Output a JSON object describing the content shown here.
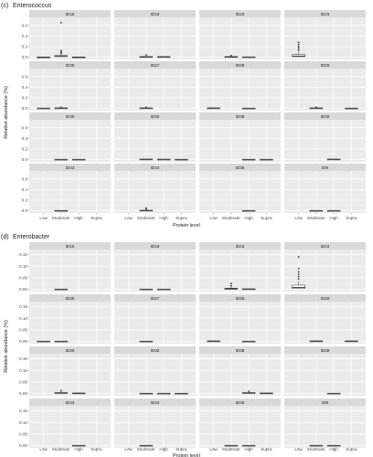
{
  "chart_data": [
    {
      "type": "box",
      "label": "(c)",
      "title": "Enterococcus",
      "xlabel": "Protein level",
      "ylabel": "Relative abundance (%)",
      "categories": [
        "Low",
        "Moderate",
        "High",
        "Supra"
      ],
      "ylim": [
        0,
        0.7
      ],
      "yticks": [
        0.0,
        0.2,
        0.4,
        0.6
      ],
      "ytick_labels": [
        "0.0",
        "0.2",
        "0.4",
        "0.6"
      ],
      "panels": [
        {
          "id": "ID18",
          "boxes": {
            "Low": [
              0,
              0,
              0,
              0,
              0
            ],
            "Moderate": [
              0,
              0.01,
              0.015,
              0.03,
              0.05
            ],
            "High": [
              0,
              0,
              0,
              0,
              0
            ]
          },
          "outliers": {
            "Moderate": [
              0.07,
              0.09,
              0.12,
              0.65
            ]
          }
        },
        {
          "id": "ID19",
          "boxes": {
            "Moderate": [
              0,
              0,
              0.005,
              0.01,
              0.02
            ],
            "High": [
              0,
              0,
              0.005,
              0.01,
              0.015
            ]
          },
          "outliers": {
            "Moderate": [
              0.04
            ]
          }
        },
        {
          "id": "ID23",
          "boxes": {
            "Moderate": [
              0,
              0,
              0.005,
              0.01,
              0.02
            ],
            "High": [
              0,
              0,
              0.002,
              0.005,
              0.01
            ]
          },
          "outliers": {
            "Moderate": [
              0.03
            ]
          }
        },
        {
          "id": "ID24",
          "boxes": {
            "Low": [
              0,
              0.01,
              0.02,
              0.05,
              0.1
            ]
          },
          "outliers": {
            "Low": [
              0.13,
              0.17,
              0.2,
              0.24,
              0.28
            ]
          }
        },
        {
          "id": "ID25",
          "boxes": {
            "Low": [
              0,
              0,
              0.002,
              0.005,
              0.01
            ],
            "Moderate": [
              0,
              0,
              0.004,
              0.008,
              0.015
            ]
          },
          "outliers": {
            "Moderate": [
              0.02
            ]
          }
        },
        {
          "id": "ID27",
          "boxes": {
            "Moderate": [
              0,
              0,
              0.004,
              0.008,
              0.015
            ]
          },
          "outliers": {
            "Moderate": [
              0.02
            ]
          }
        },
        {
          "id": "ID28",
          "boxes": {
            "Low": [
              0,
              0,
              0.004,
              0.008,
              0.015
            ],
            "High": [
              0,
              0,
              0.002,
              0.004,
              0.008
            ]
          },
          "outliers": {}
        },
        {
          "id": "ID29",
          "boxes": {
            "Moderate": [
              0,
              0,
              0.004,
              0.008,
              0.015
            ],
            "Supra": [
              0,
              0,
              0.002,
              0.004,
              0.008
            ]
          },
          "outliers": {
            "Moderate": [
              0.02
            ]
          }
        },
        {
          "id": "ID30",
          "boxes": {
            "Moderate": [
              0,
              0,
              0.002,
              0.004,
              0.008
            ],
            "High": [
              0,
              0,
              0.002,
              0.004,
              0.008
            ]
          },
          "outliers": {}
        },
        {
          "id": "ID32",
          "boxes": {
            "Moderate": [
              0,
              0,
              0.004,
              0.008,
              0.015
            ],
            "High": [
              0,
              0,
              0.003,
              0.006,
              0.012
            ],
            "Supra": [
              0,
              0,
              0.002,
              0.004,
              0.008
            ]
          },
          "outliers": {}
        },
        {
          "id": "ID38",
          "boxes": {
            "High": [
              0,
              0,
              0.002,
              0.004,
              0.008
            ],
            "Supra": [
              0,
              0,
              0.002,
              0.004,
              0.008
            ]
          },
          "outliers": {}
        },
        {
          "id": "ID39",
          "boxes": {
            "High": [
              0,
              0,
              0.004,
              0.008,
              0.015
            ]
          },
          "outliers": {}
        },
        {
          "id": "ID43",
          "boxes": {
            "Moderate": [
              0,
              0,
              0.002,
              0.004,
              0.008
            ]
          },
          "outliers": {}
        },
        {
          "id": "ID44",
          "boxes": {
            "Moderate": [
              0,
              0,
              0.004,
              0.008,
              0.015
            ]
          },
          "outliers": {
            "Moderate": [
              0.03,
              0.05
            ]
          }
        },
        {
          "id": "ID45",
          "boxes": {
            "High": [
              0,
              0,
              0.002,
              0.004,
              0.008
            ]
          },
          "outliers": {}
        },
        {
          "id": "ID9",
          "boxes": {
            "Moderate": [
              0,
              0,
              0.002,
              0.004,
              0.008
            ],
            "High": [
              0,
              0,
              0.002,
              0.004,
              0.008
            ]
          },
          "outliers": {}
        }
      ]
    },
    {
      "type": "box",
      "label": "(d)",
      "title": "Enterobacter",
      "xlabel": "Protein level",
      "ylabel": "Relative abundance (%)",
      "categories": [
        "Low",
        "Moderate",
        "High",
        "Supra"
      ],
      "ylim": [
        0,
        0.16
      ],
      "yticks": [
        0.0,
        0.05,
        0.1,
        0.15
      ],
      "ytick_labels": [
        "0.00",
        "0.05",
        "0.10",
        "0.15"
      ],
      "panels": [
        {
          "id": "ID18",
          "boxes": {
            "Moderate": [
              0,
              0,
              0.0005,
              0.001,
              0.002
            ]
          },
          "outliers": {}
        },
        {
          "id": "ID19",
          "boxes": {
            "Moderate": [
              0,
              0,
              0.0005,
              0.001,
              0.002
            ],
            "High": [
              0,
              0,
              0.0005,
              0.001,
              0.002
            ]
          },
          "outliers": {}
        },
        {
          "id": "ID23",
          "boxes": {
            "Moderate": [
              0,
              0,
              0.002,
              0.005,
              0.01
            ],
            "High": [
              0,
              0,
              0.001,
              0.002,
              0.004
            ]
          },
          "outliers": {
            "Moderate": [
              0.015,
              0.025
            ]
          }
        },
        {
          "id": "ID24",
          "boxes": {
            "Low": [
              0,
              0.003,
              0.008,
              0.018,
              0.035
            ]
          },
          "outliers": {
            "Low": [
              0.045,
              0.055,
              0.065,
              0.075,
              0.09,
              0.14
            ]
          }
        },
        {
          "id": "ID25",
          "boxes": {
            "Low": [
              0,
              0,
              0.0005,
              0.001,
              0.002
            ],
            "Moderate": [
              0,
              0,
              0.0005,
              0.001,
              0.002
            ]
          },
          "outliers": {}
        },
        {
          "id": "ID27",
          "boxes": {
            "Moderate": [
              0,
              0,
              0.0005,
              0.001,
              0.002
            ]
          },
          "outliers": {}
        },
        {
          "id": "ID28",
          "boxes": {
            "Low": [
              0,
              0,
              0.001,
              0.002,
              0.004
            ],
            "High": [
              0,
              0,
              0.0005,
              0.001,
              0.002
            ]
          },
          "outliers": {}
        },
        {
          "id": "ID29",
          "boxes": {
            "Moderate": [
              0,
              0,
              0.001,
              0.002,
              0.004
            ],
            "Supra": [
              0,
              0,
              0.001,
              0.002,
              0.004
            ]
          },
          "outliers": {}
        },
        {
          "id": "ID30",
          "boxes": {
            "Moderate": [
              0,
              0,
              0.002,
              0.004,
              0.008
            ],
            "High": [
              0,
              0,
              0.001,
              0.002,
              0.004
            ]
          },
          "outliers": {
            "Moderate": [
              0.012
            ]
          }
        },
        {
          "id": "ID32",
          "boxes": {
            "Moderate": [
              0,
              0,
              0.0005,
              0.001,
              0.002
            ],
            "High": [
              0,
              0,
              0.0005,
              0.001,
              0.002
            ],
            "Supra": [
              0,
              0,
              0.0005,
              0.001,
              0.002
            ]
          },
          "outliers": {}
        },
        {
          "id": "ID38",
          "boxes": {
            "High": [
              0,
              0,
              0.002,
              0.004,
              0.008
            ],
            "Supra": [
              0,
              0,
              0.001,
              0.002,
              0.004
            ]
          },
          "outliers": {
            "High": [
              0.01
            ]
          }
        },
        {
          "id": "ID39",
          "boxes": {
            "High": [
              0,
              0,
              0.0005,
              0.001,
              0.002
            ]
          },
          "outliers": {}
        },
        {
          "id": "ID43",
          "boxes": {
            "High": [
              0,
              0,
              0.0005,
              0.001,
              0.002
            ]
          },
          "outliers": {}
        },
        {
          "id": "ID44",
          "boxes": {
            "Moderate": [
              0,
              0,
              0.0005,
              0.001,
              0.002
            ]
          },
          "outliers": {}
        },
        {
          "id": "ID45",
          "boxes": {
            "Moderate": [
              0,
              0,
              0.0005,
              0.001,
              0.002
            ],
            "High": [
              0,
              0,
              0.0005,
              0.001,
              0.002
            ]
          },
          "outliers": {}
        },
        {
          "id": "ID9",
          "boxes": {
            "Moderate": [
              0,
              0,
              0.0005,
              0.001,
              0.002
            ],
            "High": [
              0,
              0,
              0.0005,
              0.001,
              0.002
            ]
          },
          "outliers": {}
        }
      ]
    }
  ],
  "colors": {
    "panel_bg": "#ebebeb",
    "strip_bg": "#d9d9d9",
    "grid_major": "#ffffff",
    "grid_minor": "#f4f4f4",
    "box_fill": "#ffffff",
    "box_line": "#333333",
    "text": "#1a1a1a",
    "axis_text": "#4d4d4d"
  }
}
